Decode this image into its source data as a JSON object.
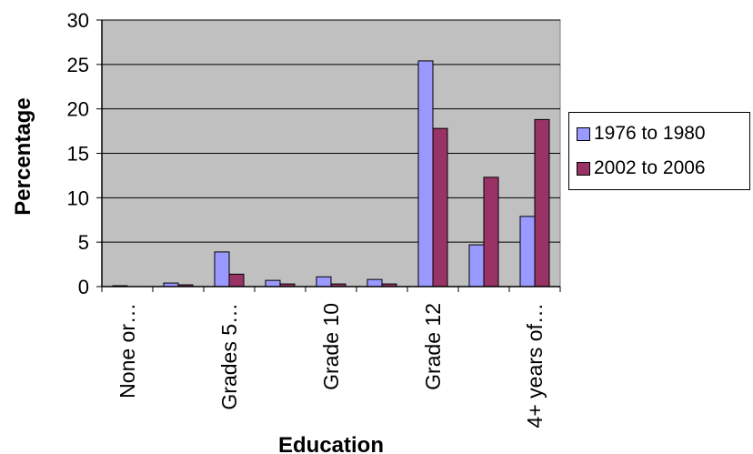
{
  "chart_data": {
    "type": "bar",
    "xlabel": "Education",
    "ylabel": "Percentage",
    "ylim": [
      0,
      30
    ],
    "yticks": [
      0,
      5,
      10,
      15,
      20,
      25,
      30
    ],
    "categories": [
      "None or…",
      "",
      "Grades 5…",
      "",
      "Grade 10",
      "",
      "Grade 12",
      "",
      "4+ years of…"
    ],
    "series": [
      {
        "name": "1976 to 1980",
        "color": "#9999ff",
        "values": [
          0.1,
          0.4,
          3.9,
          0.7,
          1.1,
          0.8,
          25.4,
          4.7,
          7.9
        ]
      },
      {
        "name": "2002 to 2006",
        "color": "#993366",
        "values": [
          0.0,
          0.2,
          1.4,
          0.3,
          0.3,
          0.3,
          17.8,
          12.3,
          18.8
        ]
      }
    ],
    "plot_background": "#c0c0c0",
    "grid": true,
    "legend_position": "right"
  }
}
